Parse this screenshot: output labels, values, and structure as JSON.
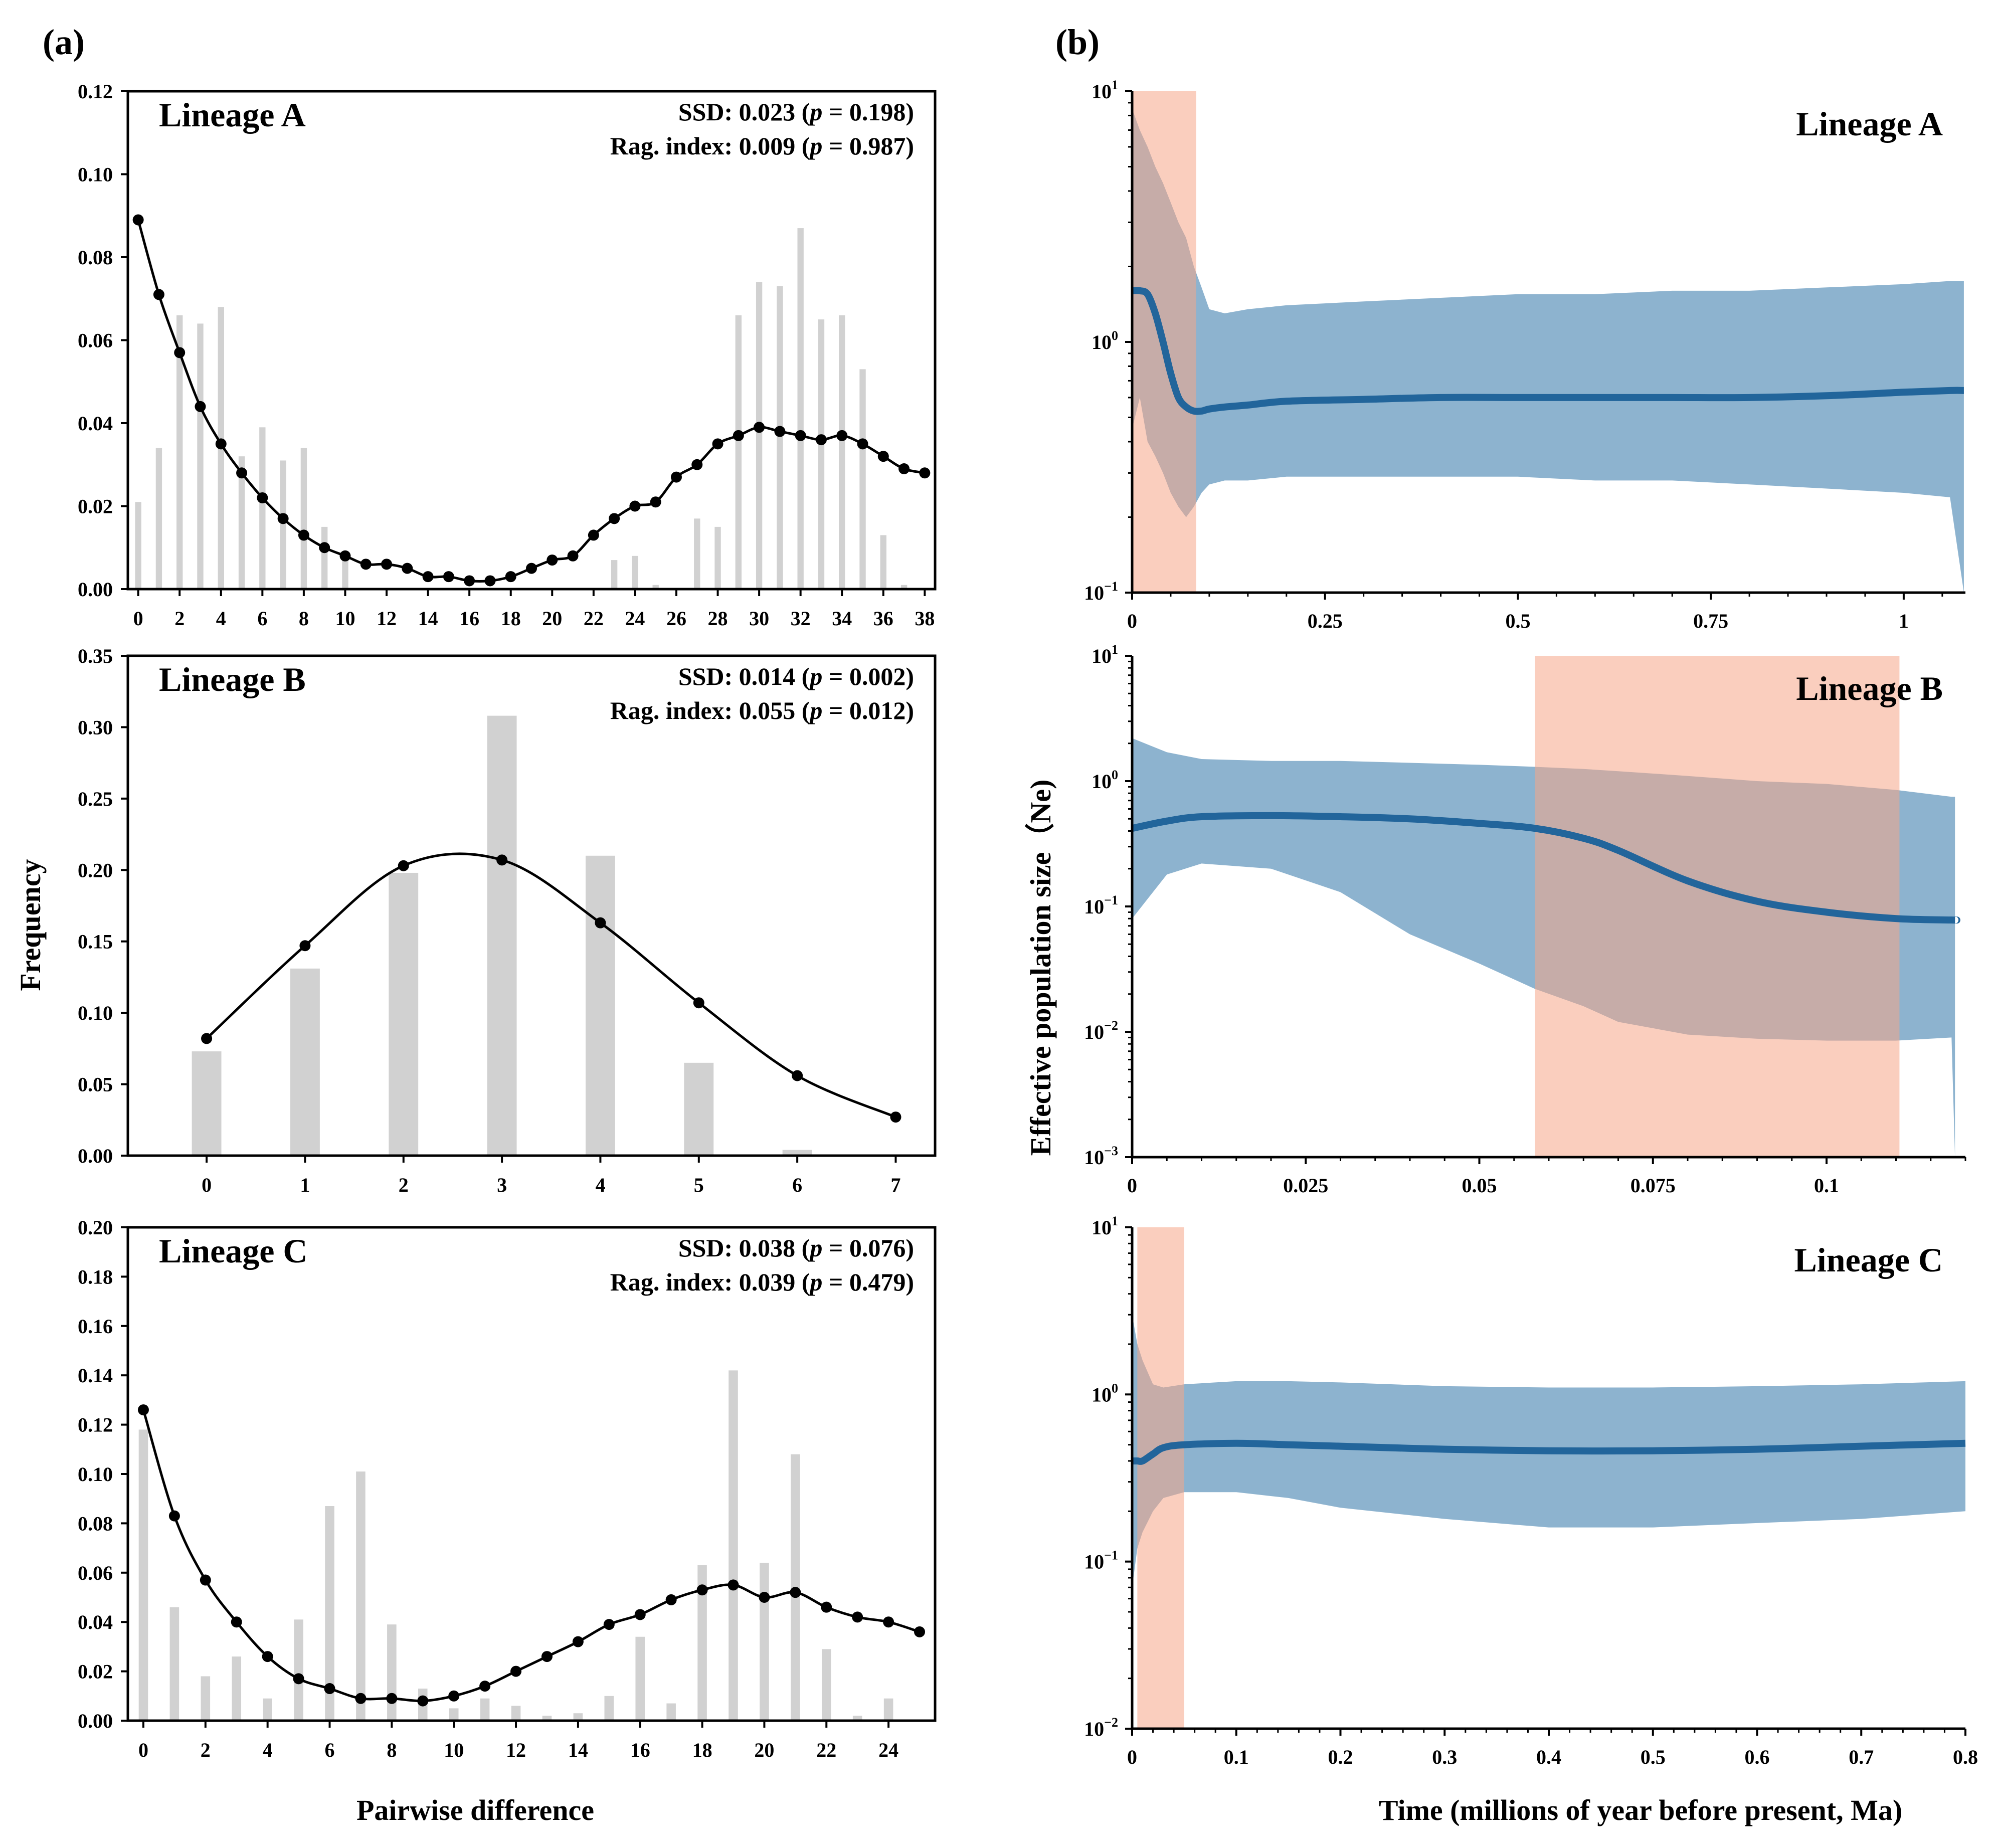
{
  "figure": {
    "panel_a_label": "(a)",
    "panel_b_label": "(b)",
    "left_ylabel": "Frequency",
    "left_xlabel": "Pairwise difference",
    "right_ylabel": "Effective population size（Ne)",
    "right_xlabel": "Time (millions of year before present, Ma)"
  },
  "colors": {
    "bars": "#d1d1d1",
    "fit_line": "#000000",
    "ci_band": "#8db3cf",
    "median_line": "#22659b",
    "highlight": "#f6a589"
  },
  "chart_data": [
    {
      "id": "mismatch-A",
      "type": "bar",
      "title": "Lineage A",
      "stat1": {
        "label": "SSD:",
        "value": "0.023",
        "p": "0.198"
      },
      "stat2": {
        "label": "Rag. index:",
        "value": "0.009",
        "p": "0.987"
      },
      "xlabel": "",
      "ylabel": "",
      "ylim": [
        0,
        0.12
      ],
      "yticks": [
        "0.00",
        "0.02",
        "0.04",
        "0.06",
        "0.08",
        "0.10",
        "0.12"
      ],
      "xlim": [
        -0.5,
        38.5
      ],
      "xticks": [
        "0",
        "2",
        "4",
        "6",
        "8",
        "10",
        "12",
        "14",
        "16",
        "18",
        "20",
        "22",
        "24",
        "26",
        "28",
        "30",
        "32",
        "34",
        "36",
        "38"
      ],
      "bar_width": 0.3,
      "x": [
        0,
        1,
        2,
        3,
        4,
        5,
        6,
        7,
        8,
        9,
        10,
        11,
        12,
        13,
        14,
        15,
        16,
        17,
        18,
        19,
        20,
        21,
        22,
        23,
        24,
        25,
        26,
        27,
        28,
        29,
        30,
        31,
        32,
        33,
        34,
        35,
        36,
        37,
        38
      ],
      "observed": [
        0.021,
        0.034,
        0.066,
        0.064,
        0.068,
        0.032,
        0.039,
        0.031,
        0.034,
        0.015,
        0.008,
        0,
        0,
        0,
        0,
        0,
        0,
        0,
        0,
        0,
        0,
        0,
        0,
        0.007,
        0.008,
        0.001,
        0,
        0.017,
        0.015,
        0.066,
        0.074,
        0.073,
        0.087,
        0.065,
        0.066,
        0.053,
        0.013,
        0.001,
        0
      ],
      "expected": [
        0.089,
        0.071,
        0.057,
        0.044,
        0.035,
        0.028,
        0.022,
        0.017,
        0.013,
        0.01,
        0.008,
        0.006,
        0.006,
        0.005,
        0.003,
        0.003,
        0.002,
        0.002,
        0.003,
        0.005,
        0.007,
        0.008,
        0.013,
        0.017,
        0.02,
        0.021,
        0.027,
        0.03,
        0.035,
        0.037,
        0.039,
        0.038,
        0.037,
        0.036,
        0.037,
        0.035,
        0.032,
        0.029,
        0.028
      ]
    },
    {
      "id": "mismatch-B",
      "type": "bar",
      "title": "Lineage B",
      "stat1": {
        "label": "SSD:",
        "value": "0.014",
        "p": "0.002"
      },
      "stat2": {
        "label": "Rag. index:",
        "value": "0.055",
        "p": "0.012"
      },
      "xlabel": "",
      "ylabel": "",
      "ylim": [
        0,
        0.35
      ],
      "yticks": [
        "0.00",
        "0.05",
        "0.10",
        "0.15",
        "0.20",
        "0.25",
        "0.30",
        "0.35"
      ],
      "xlim": [
        -0.8,
        7.4
      ],
      "xticks": [
        "0",
        "1",
        "2",
        "3",
        "4",
        "5",
        "6",
        "7"
      ],
      "bar_width": 0.3,
      "x": [
        0,
        1,
        2,
        3,
        4,
        5,
        6,
        7
      ],
      "observed": [
        0.073,
        0.131,
        0.198,
        0.308,
        0.21,
        0.065,
        0.004,
        0
      ],
      "expected": [
        0.082,
        0.147,
        0.203,
        0.207,
        0.163,
        0.107,
        0.056,
        0.027
      ]
    },
    {
      "id": "mismatch-C",
      "type": "bar",
      "title": "Lineage C",
      "stat1": {
        "label": "SSD:",
        "value": "0.038",
        "p": "0.076"
      },
      "stat2": {
        "label": "Rag. index:",
        "value": "0.039",
        "p": "0.479"
      },
      "xlabel": "",
      "ylabel": "",
      "ylim": [
        0,
        0.2
      ],
      "yticks": [
        "0.00",
        "0.02",
        "0.04",
        "0.06",
        "0.08",
        "0.10",
        "0.12",
        "0.14",
        "0.16",
        "0.18",
        "0.20"
      ],
      "xlim": [
        -0.5,
        25.5
      ],
      "xticks": [
        "0",
        "2",
        "4",
        "6",
        "8",
        "10",
        "12",
        "14",
        "16",
        "18",
        "20",
        "22",
        "24"
      ],
      "bar_width": 0.3,
      "x": [
        0,
        1,
        2,
        3,
        4,
        5,
        6,
        7,
        8,
        9,
        10,
        11,
        12,
        13,
        14,
        15,
        16,
        17,
        18,
        19,
        20,
        21,
        22,
        23,
        24,
        25
      ],
      "observed": [
        0.118,
        0.046,
        0.018,
        0.026,
        0.009,
        0.041,
        0.087,
        0.101,
        0.039,
        0.013,
        0.005,
        0.009,
        0.006,
        0.002,
        0.003,
        0.01,
        0.034,
        0.007,
        0.063,
        0.142,
        0.064,
        0.108,
        0.029,
        0.002,
        0.009,
        0
      ],
      "expected": [
        0.126,
        0.083,
        0.057,
        0.04,
        0.026,
        0.017,
        0.013,
        0.009,
        0.009,
        0.008,
        0.01,
        0.014,
        0.02,
        0.026,
        0.032,
        0.039,
        0.043,
        0.049,
        0.053,
        0.055,
        0.05,
        0.052,
        0.046,
        0.042,
        0.04,
        0.036
      ]
    },
    {
      "id": "bsp-A",
      "type": "area",
      "title": "Lineage A",
      "xlabel": "",
      "ylabel": "",
      "scale": "log10",
      "ylim_log10": [
        -1,
        1
      ],
      "yticks": [
        {
          "base": "10",
          "exp": "1",
          "log10": 1
        },
        {
          "base": "10",
          "exp": "0",
          "log10": 0
        },
        {
          "base": "10",
          "exp": "−1",
          "log10": -1
        }
      ],
      "xlim": [
        0,
        1.08
      ],
      "xticks": [
        {
          "label": "0",
          "value": 0
        },
        {
          "label": "0.25",
          "value": 0.25
        },
        {
          "label": "0.5",
          "value": 0.5
        },
        {
          "label": "0.75",
          "value": 0.75
        },
        {
          "label": "1",
          "value": 1
        }
      ],
      "highlight": [
        0,
        0.083
      ],
      "x": [
        0,
        0.01,
        0.02,
        0.03,
        0.04,
        0.05,
        0.06,
        0.07,
        0.08,
        0.09,
        0.1,
        0.12,
        0.15,
        0.2,
        0.3,
        0.4,
        0.5,
        0.6,
        0.7,
        0.8,
        0.9,
        1.0,
        1.06,
        1.078
      ],
      "median": [
        1.6,
        1.6,
        1.55,
        1.3,
        1.0,
        0.75,
        0.6,
        0.55,
        0.53,
        0.53,
        0.54,
        0.55,
        0.56,
        0.58,
        0.59,
        0.6,
        0.6,
        0.6,
        0.6,
        0.6,
        0.61,
        0.63,
        0.64,
        0.64
      ],
      "upper": [
        8.5,
        7.0,
        6.0,
        5.0,
        4.3,
        3.6,
        3.0,
        2.6,
        2.0,
        1.65,
        1.35,
        1.3,
        1.35,
        1.4,
        1.45,
        1.5,
        1.55,
        1.55,
        1.6,
        1.6,
        1.65,
        1.7,
        1.75,
        1.75
      ],
      "lower": [
        0.45,
        0.6,
        0.4,
        0.35,
        0.3,
        0.25,
        0.22,
        0.2,
        0.22,
        0.25,
        0.27,
        0.28,
        0.28,
        0.29,
        0.29,
        0.29,
        0.29,
        0.28,
        0.28,
        0.27,
        0.26,
        0.25,
        0.24,
        0.1
      ]
    },
    {
      "id": "bsp-B",
      "type": "area",
      "title": "Lineage B",
      "xlabel": "",
      "ylabel": "",
      "scale": "log10",
      "ylim_log10": [
        -3,
        1
      ],
      "yticks": [
        {
          "base": "10",
          "exp": "1",
          "log10": 1
        },
        {
          "base": "10",
          "exp": "0",
          "log10": 0
        },
        {
          "base": "10",
          "exp": "−1",
          "log10": -1
        },
        {
          "base": "10",
          "exp": "−2",
          "log10": -2
        },
        {
          "base": "10",
          "exp": "−3",
          "log10": -3
        }
      ],
      "xlim": [
        0,
        0.12
      ],
      "xticks": [
        {
          "label": "0",
          "value": 0
        },
        {
          "label": "0.025",
          "value": 0.025
        },
        {
          "label": "0.05",
          "value": 0.05
        },
        {
          "label": "0.075",
          "value": 0.075
        },
        {
          "label": "0.1",
          "value": 0.1
        }
      ],
      "highlight": [
        0.058,
        0.1105
      ],
      "x": [
        0,
        0.005,
        0.01,
        0.02,
        0.03,
        0.04,
        0.05,
        0.058,
        0.065,
        0.07,
        0.08,
        0.09,
        0.1,
        0.11,
        0.118,
        0.1185
      ],
      "median": [
        0.42,
        0.48,
        0.52,
        0.53,
        0.52,
        0.5,
        0.46,
        0.42,
        0.35,
        0.28,
        0.16,
        0.11,
        0.09,
        0.08,
        0.078,
        0.078
      ],
      "upper": [
        2.2,
        1.7,
        1.5,
        1.45,
        1.45,
        1.4,
        1.35,
        1.3,
        1.25,
        1.2,
        1.1,
        1.0,
        0.95,
        0.85,
        0.75,
        0.75
      ],
      "lower": [
        0.08,
        0.18,
        0.22,
        0.2,
        0.13,
        0.06,
        0.035,
        0.022,
        0.016,
        0.012,
        0.0095,
        0.0088,
        0.0085,
        0.0085,
        0.009,
        0.001
      ]
    },
    {
      "id": "bsp-C",
      "type": "area",
      "title": "Lineage C",
      "xlabel": "",
      "ylabel": "",
      "scale": "log10",
      "ylim_log10": [
        -2,
        1
      ],
      "yticks": [
        {
          "base": "10",
          "exp": "1",
          "log10": 1
        },
        {
          "base": "10",
          "exp": "0",
          "log10": 0
        },
        {
          "base": "10",
          "exp": "−1",
          "log10": -1
        },
        {
          "base": "10",
          "exp": "−2",
          "log10": -2
        }
      ],
      "xlim": [
        0,
        0.8
      ],
      "xticks": [
        {
          "label": "0",
          "value": 0
        },
        {
          "label": "0.1",
          "value": 0.1
        },
        {
          "label": "0.2",
          "value": 0.2
        },
        {
          "label": "0.3",
          "value": 0.3
        },
        {
          "label": "0.4",
          "value": 0.4
        },
        {
          "label": "0.5",
          "value": 0.5
        },
        {
          "label": "0.6",
          "value": 0.6
        },
        {
          "label": "0.7",
          "value": 0.7
        },
        {
          "label": "0.8",
          "value": 0.8
        }
      ],
      "highlight": [
        0.005,
        0.05
      ],
      "x": [
        0,
        0.005,
        0.01,
        0.02,
        0.03,
        0.05,
        0.1,
        0.15,
        0.2,
        0.3,
        0.4,
        0.5,
        0.6,
        0.7,
        0.8
      ],
      "median": [
        0.4,
        0.4,
        0.4,
        0.44,
        0.48,
        0.5,
        0.51,
        0.5,
        0.49,
        0.47,
        0.46,
        0.46,
        0.47,
        0.49,
        0.51
      ],
      "upper": [
        3.0,
        2.0,
        1.6,
        1.15,
        1.1,
        1.15,
        1.2,
        1.2,
        1.18,
        1.12,
        1.1,
        1.1,
        1.12,
        1.15,
        1.2
      ],
      "lower": [
        0.07,
        0.12,
        0.15,
        0.2,
        0.24,
        0.26,
        0.26,
        0.24,
        0.21,
        0.18,
        0.16,
        0.16,
        0.17,
        0.18,
        0.2
      ]
    }
  ]
}
